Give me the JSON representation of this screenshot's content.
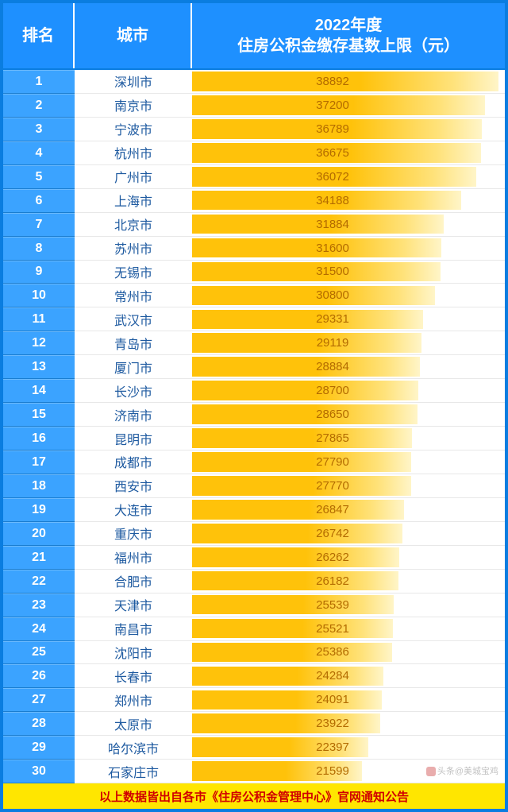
{
  "header": {
    "rank": "排名",
    "city": "城市",
    "value_line1": "2022年度",
    "value_line2": "住房公积金缴存基数上限（元）"
  },
  "max_value": 38892,
  "bar_max_pct": 98,
  "colors": {
    "frame_border": "#0a7de0",
    "header_bg": "#1e90ff",
    "header_text": "#ffffff",
    "rank_bg": "#3ba3ff",
    "rank_text": "#ffffff",
    "city_text": "#1e5aa0",
    "bar_gradient_from": "#ffc20a",
    "bar_gradient_to": "#fff5c8",
    "bar_label": "#b36b00",
    "footer_bg": "#ffe600",
    "footer_text": "#d00000"
  },
  "rows": [
    {
      "rank": "1",
      "city": "深圳市",
      "value": 38892
    },
    {
      "rank": "2",
      "city": "南京市",
      "value": 37200
    },
    {
      "rank": "3",
      "city": "宁波市",
      "value": 36789
    },
    {
      "rank": "4",
      "city": "杭州市",
      "value": 36675
    },
    {
      "rank": "5",
      "city": "广州市",
      "value": 36072
    },
    {
      "rank": "6",
      "city": "上海市",
      "value": 34188
    },
    {
      "rank": "7",
      "city": "北京市",
      "value": 31884
    },
    {
      "rank": "8",
      "city": "苏州市",
      "value": 31600
    },
    {
      "rank": "9",
      "city": "无锡市",
      "value": 31500
    },
    {
      "rank": "10",
      "city": "常州市",
      "value": 30800
    },
    {
      "rank": "11",
      "city": "武汉市",
      "value": 29331
    },
    {
      "rank": "12",
      "city": "青岛市",
      "value": 29119
    },
    {
      "rank": "13",
      "city": "厦门市",
      "value": 28884
    },
    {
      "rank": "14",
      "city": "长沙市",
      "value": 28700
    },
    {
      "rank": "15",
      "city": "济南市",
      "value": 28650
    },
    {
      "rank": "16",
      "city": "昆明市",
      "value": 27865
    },
    {
      "rank": "17",
      "city": "成都市",
      "value": 27790
    },
    {
      "rank": "18",
      "city": "西安市",
      "value": 27770
    },
    {
      "rank": "19",
      "city": "大连市",
      "value": 26847
    },
    {
      "rank": "20",
      "city": "重庆市",
      "value": 26742
    },
    {
      "rank": "21",
      "city": "福州市",
      "value": 26262
    },
    {
      "rank": "22",
      "city": "合肥市",
      "value": 26182
    },
    {
      "rank": "23",
      "city": "天津市",
      "value": 25539
    },
    {
      "rank": "24",
      "city": "南昌市",
      "value": 25521
    },
    {
      "rank": "25",
      "city": "沈阳市",
      "value": 25386
    },
    {
      "rank": "26",
      "city": "长春市",
      "value": 24284
    },
    {
      "rank": "27",
      "city": "郑州市",
      "value": 24091
    },
    {
      "rank": "28",
      "city": "太原市",
      "value": 23922
    },
    {
      "rank": "29",
      "city": "哈尔滨市",
      "value": 22397
    },
    {
      "rank": "30",
      "city": "石家庄市",
      "value": 21599
    }
  ],
  "footer": "以上数据皆出自各市《住房公积金管理中心》官网通知公告",
  "watermark": "头条@美城宝鸡"
}
